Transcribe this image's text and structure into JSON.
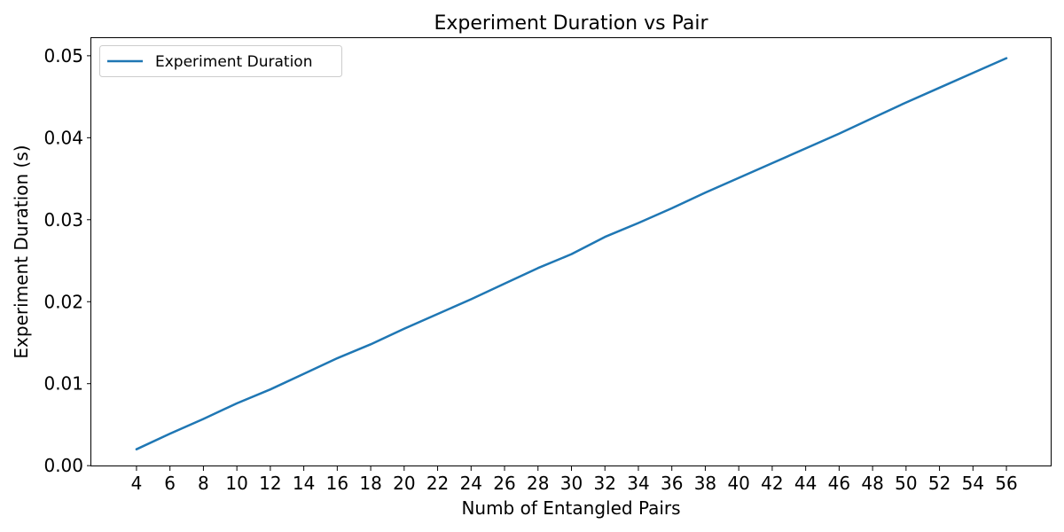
{
  "chart_data": {
    "type": "line",
    "title": "Experiment Duration vs Pair",
    "xlabel": "Numb of Entangled Pairs",
    "ylabel": "Experiment Duration (s)",
    "x": [
      4,
      6,
      8,
      10,
      12,
      14,
      16,
      18,
      20,
      22,
      24,
      26,
      28,
      30,
      32,
      34,
      36,
      38,
      40,
      42,
      44,
      46,
      48,
      50,
      52,
      54,
      56
    ],
    "series": [
      {
        "name": "Experiment Duration",
        "color": "#1f77b4",
        "values": [
          0.002,
          0.0039,
          0.0057,
          0.0076,
          0.0093,
          0.0112,
          0.0131,
          0.0148,
          0.0167,
          0.0185,
          0.0203,
          0.0222,
          0.0241,
          0.0258,
          0.0279,
          0.0296,
          0.0314,
          0.0333,
          0.0351,
          0.0369,
          0.0387,
          0.0405,
          0.0424,
          0.0443,
          0.0461,
          0.0479,
          0.0497
        ]
      }
    ],
    "xlim": [
      1.3,
      58.7
    ],
    "ylim": [
      -9e-05,
      0.05215
    ],
    "xticks": [
      "4",
      "6",
      "8",
      "10",
      "12",
      "14",
      "16",
      "18",
      "20",
      "22",
      "24",
      "26",
      "28",
      "30",
      "32",
      "34",
      "36",
      "38",
      "40",
      "42",
      "44",
      "46",
      "48",
      "50",
      "52",
      "54",
      "56"
    ],
    "yticks": [
      "0.00",
      "0.01",
      "0.02",
      "0.03",
      "0.04",
      "0.05"
    ],
    "grid": false,
    "legend_position": "top-left"
  }
}
